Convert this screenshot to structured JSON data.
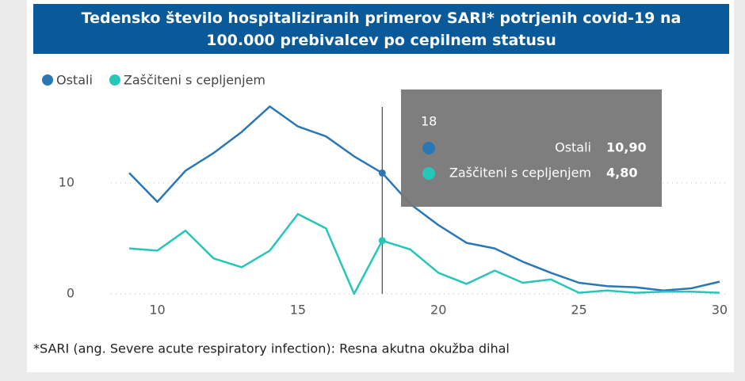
{
  "chart_data": {
    "type": "line",
    "title": "Tedensko število hospitaliziranih primerov SARI* potrjenih covid-19 na 100.000 prebivalcev po cepilnem statusu",
    "x": [
      9,
      10,
      11,
      12,
      13,
      14,
      15,
      16,
      17,
      18,
      19,
      20,
      21,
      22,
      23,
      24,
      25,
      26,
      27,
      28,
      29,
      30
    ],
    "series": [
      {
        "name": "Ostali",
        "color": "#2a77b6",
        "values": [
          10.9,
          8.3,
          11.1,
          12.7,
          14.6,
          16.9,
          15.1,
          14.2,
          12.4,
          10.9,
          8.1,
          6.2,
          4.6,
          4.1,
          2.9,
          1.9,
          1.0,
          0.7,
          0.6,
          0.3,
          0.5,
          1.1
        ]
      },
      {
        "name": "Zaščiteni s cepljenjem",
        "color": "#26c6b9",
        "values": [
          4.1,
          3.9,
          5.7,
          3.2,
          2.4,
          3.9,
          7.2,
          5.9,
          0,
          4.8,
          4.0,
          1.9,
          0.9,
          2.1,
          1.0,
          1.3,
          0.1,
          0.3,
          0.1,
          0.2,
          0.2,
          0.1
        ]
      }
    ],
    "xlim": [
      8.35,
      30.2
    ],
    "xticks": [
      10,
      15,
      20,
      25,
      30
    ],
    "ylim": [
      0,
      18
    ],
    "yticks": [
      0,
      10
    ],
    "grid": true,
    "tooltip": {
      "x": 18,
      "value_labels": [
        "10,90",
        "4,80"
      ]
    },
    "footnote": "*SARI (ang. Severe acute respiratory infection): Resna akutna okužba dihal"
  }
}
